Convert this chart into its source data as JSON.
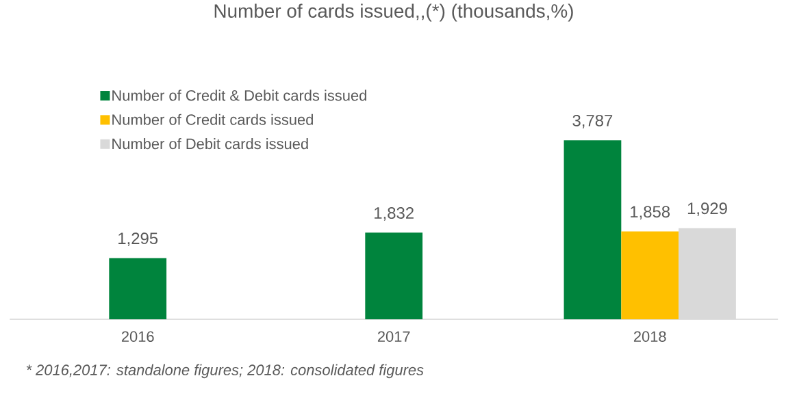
{
  "chart_data": {
    "type": "bar",
    "title": "Number of cards issued,,(*) (thousands,%)",
    "categories": [
      "2016",
      "2017",
      "2018"
    ],
    "series": [
      {
        "name": "Number of Credit & Debit cards issued",
        "color": "#00843d",
        "values": [
          1295,
          1832,
          3787
        ],
        "value_labels": [
          "1,295",
          "1,832",
          "3,787"
        ]
      },
      {
        "name": "Number of Credit cards issued",
        "color": "#ffc000",
        "values": [
          null,
          null,
          1858
        ],
        "value_labels": [
          null,
          null,
          "1,858"
        ]
      },
      {
        "name": "Number of Debit cards issued",
        "color": "#d9d9d9",
        "values": [
          null,
          null,
          1929
        ],
        "value_labels": [
          null,
          null,
          "1,929"
        ]
      }
    ],
    "legend": "top left",
    "annotations": [
      "* 2016,2017: standalone figures; 2018: consolidated figures"
    ]
  }
}
